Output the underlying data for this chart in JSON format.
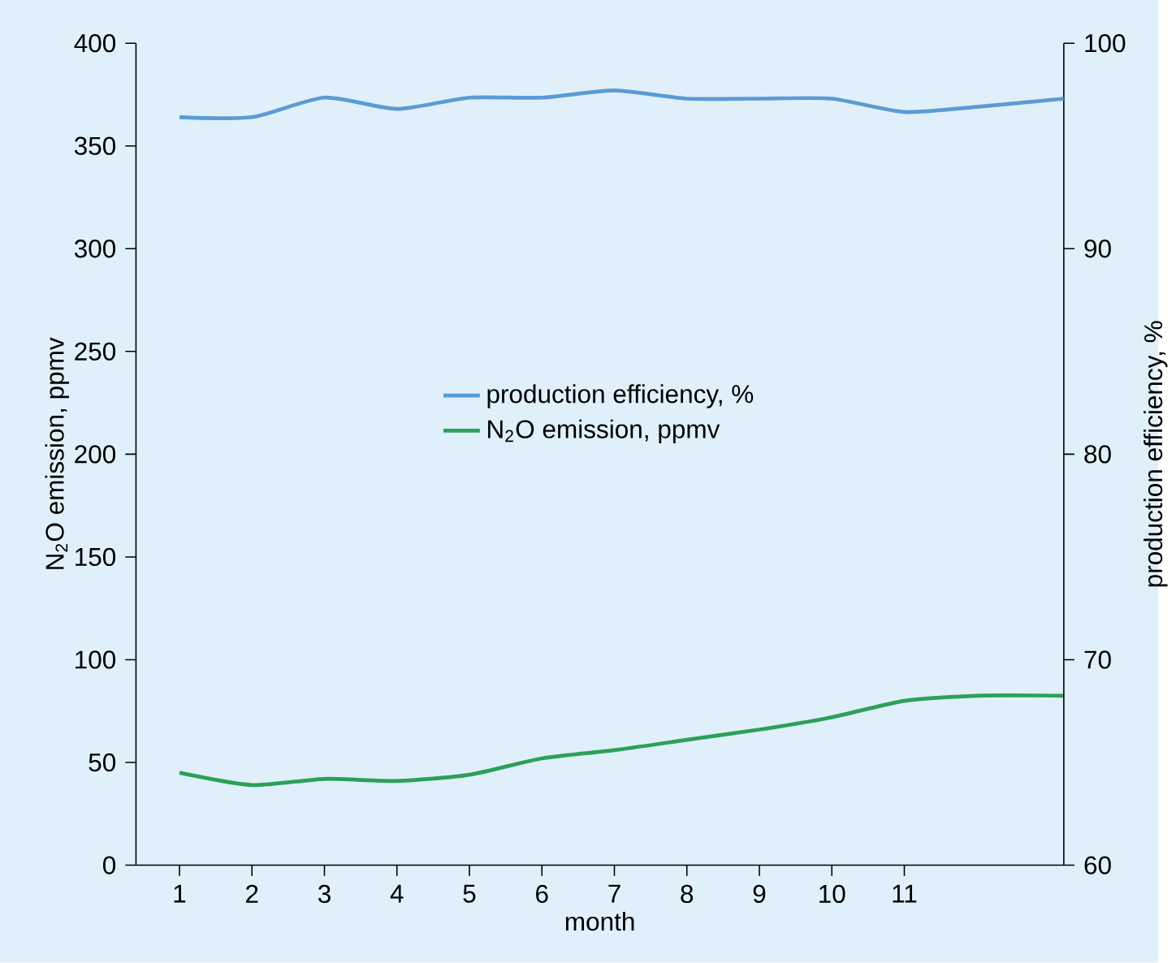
{
  "chart_data": {
    "type": "line",
    "xlabel": "month",
    "ylabel": "N$_{2}$O emission, ppmv",
    "y2label": "production efficiency, %",
    "x": [
      1,
      2,
      3,
      4,
      5,
      6,
      7,
      8,
      9,
      10,
      11,
      12,
      13.2
    ],
    "xlim": [
      0.4,
      13.2
    ],
    "xticks": [
      1,
      2,
      3,
      4,
      5,
      6,
      7,
      8,
      9,
      10,
      11
    ],
    "ylim": [
      0,
      400
    ],
    "yticks": [
      0,
      50,
      100,
      150,
      200,
      250,
      300,
      350,
      400
    ],
    "y2lim": [
      60,
      100
    ],
    "y2ticks": [
      60,
      70,
      80,
      90,
      100
    ],
    "series": [
      {
        "name": "production efficiency, %",
        "color": "#5b9bd5",
        "axis": "y2",
        "values": [
          96.4,
          96.4,
          97.35,
          96.8,
          97.35,
          97.35,
          97.7,
          97.3,
          97.3,
          97.3,
          96.65,
          96.9,
          97.3
        ]
      },
      {
        "name": "N$_{2}$O emission, ppmv",
        "color": "#2ca05a",
        "values": [
          45,
          39,
          42,
          41,
          44,
          52,
          56,
          61,
          66,
          72,
          80,
          82.5,
          82.5
        ]
      }
    ],
    "legend": "center",
    "grid": false,
    "marker": "none",
    "line_style": "solid"
  }
}
